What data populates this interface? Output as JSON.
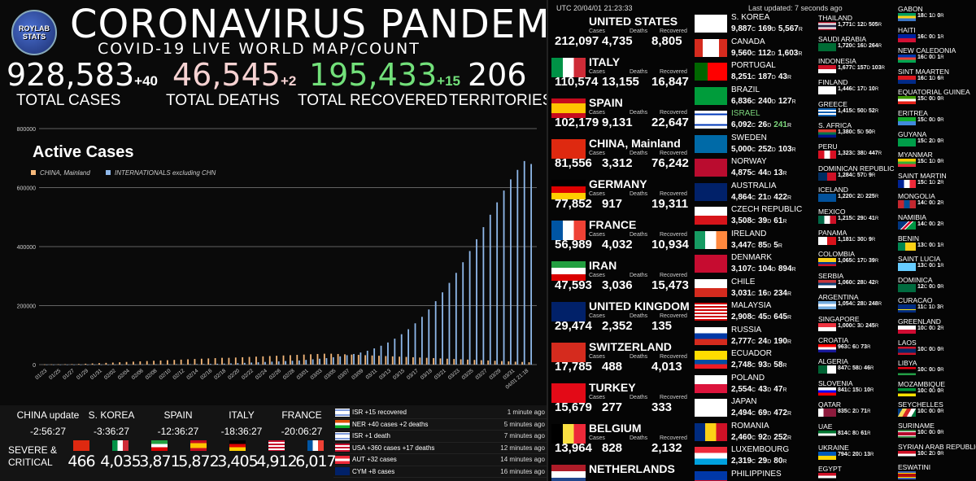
{
  "logo_text": "ROYLAB STATS",
  "title": "CORONAVIRUS PANDEMIC",
  "subtitle": "COVID-19 LIVE WORLD MAP/COUNT",
  "stats": [
    {
      "value": "928,583",
      "inc": "+40",
      "label": "TOTAL CASES",
      "color": "#ffffff"
    },
    {
      "value": "46,545",
      "inc": "+2",
      "label": "TOTAL DEATHS",
      "color": "#f6d2d2"
    },
    {
      "value": "195,433",
      "inc": "+15",
      "label": "TOTAL RECOVERED",
      "color": "#72e07a"
    },
    {
      "value": "206",
      "inc": "",
      "label": "TERRITORIES",
      "color": "#ffffff"
    }
  ],
  "chart_data": {
    "type": "bar",
    "title": "Active Cases",
    "legend": [
      "CHINA, Mainland",
      "INTERNATIONALS excluding CHN"
    ],
    "colors": [
      "#f5b87a",
      "#8fb8ea"
    ],
    "ylim": [
      0,
      800000
    ],
    "yticks": [
      "0",
      "200000",
      "400000",
      "600000",
      "800000"
    ],
    "xticks": [
      "01/23",
      "01/25",
      "01/27",
      "01/29",
      "01/31",
      "02/02",
      "02/04",
      "02/06",
      "02/08",
      "02/10",
      "02/12",
      "02/14",
      "02/16",
      "02/18",
      "02/20",
      "02/22",
      "02/24",
      "02/26",
      "02/28",
      "03/01",
      "03/03",
      "03/05",
      "03/07",
      "03/09",
      "03/11",
      "03/13",
      "03/15",
      "03/17",
      "03/19",
      "03/21",
      "03/23",
      "03/25",
      "03/27",
      "03/29",
      "03/31",
      "04/01 21:18"
    ],
    "series": [
      {
        "name": "CHINA, Mainland",
        "values": [
          600,
          800,
          1000,
          1200,
          1500,
          2000,
          3000,
          4000,
          5000,
          6000,
          7000,
          8000,
          9000,
          10000,
          11000,
          12000,
          13000,
          14000,
          15000,
          16000,
          17000,
          18000,
          19000,
          20000,
          21000,
          22000,
          23000,
          23000,
          24000,
          25000,
          26000,
          27000,
          28000,
          29000,
          30000,
          31000,
          32000,
          33000,
          34000,
          35000,
          36000,
          37000,
          37000,
          36000,
          35000,
          34000,
          33000,
          32000,
          31000,
          30000,
          29000,
          28000,
          27000,
          26000,
          25000,
          24000,
          23000,
          22000,
          21000,
          20000,
          19000,
          18000,
          17000,
          16000,
          15000,
          14000,
          13000,
          12000,
          11000,
          10000,
          9000,
          8000
        ]
      },
      {
        "name": "INTERNATIONALS excluding CHN",
        "values": [
          10,
          20,
          30,
          40,
          50,
          70,
          100,
          130,
          160,
          200,
          250,
          300,
          400,
          500,
          600,
          700,
          800,
          900,
          1000,
          1200,
          1400,
          1600,
          1800,
          2000,
          2500,
          3000,
          3500,
          4000,
          5000,
          6000,
          7000,
          8000,
          9000,
          10000,
          11000,
          12000,
          13000,
          14000,
          16000,
          18000,
          20000,
          22000,
          25000,
          28000,
          32000,
          36000,
          41000,
          47000,
          55000,
          64000,
          75000,
          88000,
          103000,
          120000,
          140000,
          162000,
          187000,
          215000,
          245000,
          277000,
          311000,
          347000,
          385000,
          425000,
          466000,
          508000,
          550000,
          590000,
          628000,
          660000,
          690000,
          680000
        ]
      }
    ]
  },
  "updates": [
    {
      "name": "CHINA update",
      "time": "-2:56:27"
    },
    {
      "name": "S. KOREA",
      "time": "-3:36:27"
    },
    {
      "name": "SPAIN",
      "time": "-12:36:27"
    },
    {
      "name": "ITALY",
      "time": "-18:36:27"
    },
    {
      "name": "FRANCE",
      "time": "-20:06:27"
    }
  ],
  "severe_label": "SEVERE & CRITICAL",
  "severe": [
    {
      "value": "466",
      "flag": "china"
    },
    {
      "value": "4,035",
      "flag": "italy"
    },
    {
      "value": "3,871",
      "flag": "iran"
    },
    {
      "value": "5,872",
      "flag": "spain"
    },
    {
      "value": "3,405",
      "flag": "germany"
    },
    {
      "value": "4,912",
      "flag": "usa"
    },
    {
      "value": "6,017",
      "flag": "france"
    }
  ],
  "news": [
    {
      "text": "ISR +15 recovered",
      "time": "1 minute ago",
      "flag": "israel"
    },
    {
      "text": "NER +40 cases +2 deaths",
      "time": "5 minutes ago",
      "flag": "niger"
    },
    {
      "text": "ISR +1 death",
      "time": "7 minutes ago",
      "flag": "israel"
    },
    {
      "text": "USA +360 cases +17 deaths",
      "time": "12 minutes ago",
      "flag": "usa"
    },
    {
      "text": "AUT +32 cases",
      "time": "14 minutes ago",
      "flag": "austria"
    },
    {
      "text": "CYM +8 cases",
      "time": "16 minutes ago",
      "flag": "cayman"
    }
  ],
  "header_utc": "UTC 20/04/01 21:23:33",
  "header_updated": "Last updated: 7 seconds ago",
  "col_labels": {
    "cases": "Cases",
    "deaths": "Deaths",
    "recovered": "Recovered"
  },
  "top_countries": [
    {
      "name": "UNITED STATES",
      "cases": "212,097",
      "deaths": "4,735",
      "recovered": "8,805",
      "flag": "usa"
    },
    {
      "name": "ITALY",
      "cases": "110,574",
      "deaths": "13,155",
      "recovered": "16,847",
      "flag": "italy"
    },
    {
      "name": "SPAIN",
      "cases": "102,179",
      "deaths": "9,131",
      "recovered": "22,647",
      "flag": "spain"
    },
    {
      "name": "CHINA, Mainland",
      "cases": "81,556",
      "deaths": "3,312",
      "recovered": "76,242",
      "flag": "china"
    },
    {
      "name": "GERMANY",
      "cases": "77,852",
      "deaths": "917",
      "recovered": "19,311",
      "flag": "germany"
    },
    {
      "name": "FRANCE",
      "cases": "56,989",
      "deaths": "4,032",
      "recovered": "10,934",
      "flag": "france"
    },
    {
      "name": "IRAN",
      "cases": "47,593",
      "deaths": "3,036",
      "recovered": "15,473",
      "flag": "iran"
    },
    {
      "name": "UNITED KINGDOM",
      "cases": "29,474",
      "deaths": "2,352",
      "recovered": "135",
      "flag": "uk"
    },
    {
      "name": "SWITZERLAND",
      "cases": "17,785",
      "deaths": "488",
      "recovered": "4,013",
      "flag": "switzerland"
    },
    {
      "name": "TURKEY",
      "cases": "15,679",
      "deaths": "277",
      "recovered": "333",
      "flag": "turkey"
    },
    {
      "name": "BELGIUM",
      "cases": "13,964",
      "deaths": "828",
      "recovered": "2,132",
      "flag": "belgium"
    },
    {
      "name": "NETHERLANDS",
      "cases": "",
      "deaths": "",
      "recovered": "",
      "flag": "netherlands"
    }
  ],
  "mid_countries": [
    {
      "name": "S. KOREA",
      "c": "9,887",
      "d": "169",
      "r": "5,567",
      "flag": "korea"
    },
    {
      "name": "CANADA",
      "c": "9,560",
      "d": "112",
      "r": "1,603",
      "flag": "canada"
    },
    {
      "name": "PORTUGAL",
      "c": "8,251",
      "d": "187",
      "r": "43",
      "flag": "portugal"
    },
    {
      "name": "BRAZIL",
      "c": "6,836",
      "d": "240",
      "r": "127",
      "flag": "brazil"
    },
    {
      "name": "ISRAEL",
      "c": "6,092",
      "d": "26",
      "r": "241",
      "flag": "israel",
      "hl": true
    },
    {
      "name": "SWEDEN",
      "c": "5,000",
      "d": "252",
      "r": "103",
      "flag": "sweden"
    },
    {
      "name": "NORWAY",
      "c": "4,875",
      "d": "44",
      "r": "13",
      "flag": "norway"
    },
    {
      "name": "AUSTRALIA",
      "c": "4,864",
      "d": "21",
      "r": "422",
      "flag": "australia"
    },
    {
      "name": "CZECH REPUBLIC",
      "c": "3,508",
      "d": "39",
      "r": "61",
      "flag": "czech"
    },
    {
      "name": "IRELAND",
      "c": "3,447",
      "d": "85",
      "r": "5",
      "flag": "ireland"
    },
    {
      "name": "DENMARK",
      "c": "3,107",
      "d": "104",
      "r": "894",
      "flag": "denmark"
    },
    {
      "name": "CHILE",
      "c": "3,031",
      "d": "16",
      "r": "234",
      "flag": "chile"
    },
    {
      "name": "MALAYSIA",
      "c": "2,908",
      "d": "45",
      "r": "645",
      "flag": "malaysia"
    },
    {
      "name": "RUSSIA",
      "c": "2,777",
      "d": "24",
      "r": "190",
      "flag": "russia"
    },
    {
      "name": "ECUADOR",
      "c": "2,748",
      "d": "93",
      "r": "58",
      "flag": "ecuador"
    },
    {
      "name": "POLAND",
      "c": "2,554",
      "d": "43",
      "r": "47",
      "flag": "poland"
    },
    {
      "name": "JAPAN",
      "c": "2,494",
      "d": "69",
      "r": "472",
      "flag": "japan"
    },
    {
      "name": "ROMANIA",
      "c": "2,460",
      "d": "92",
      "r": "252",
      "flag": "romania"
    },
    {
      "name": "LUXEMBOURG",
      "c": "2,319",
      "d": "29",
      "r": "80",
      "flag": "luxembourg"
    },
    {
      "name": "PHILIPPINES",
      "c": "",
      "d": "",
      "r": "",
      "flag": "philippines"
    }
  ],
  "small_col1": [
    {
      "name": "THAILAND",
      "c": "1,771",
      "d": "12",
      "r": "505",
      "flag": "thailand"
    },
    {
      "name": "SAUDI ARABIA",
      "c": "1,720",
      "d": "16",
      "r": "264",
      "flag": "saudi"
    },
    {
      "name": "INDONESIA",
      "c": "1,677",
      "d": "157",
      "r": "103",
      "flag": "indonesia"
    },
    {
      "name": "FINLAND",
      "c": "1,446",
      "d": "17",
      "r": "10",
      "flag": "finland"
    },
    {
      "name": "GREECE",
      "c": "1,415",
      "d": "50",
      "r": "52",
      "flag": "greece"
    },
    {
      "name": "S. AFRICA",
      "c": "1,380",
      "d": "5",
      "r": "50",
      "flag": "safrica"
    },
    {
      "name": "PERU",
      "c": "1,323",
      "d": "38",
      "r": "447",
      "flag": "peru"
    },
    {
      "name": "DOMINICAN REPUBLIC",
      "c": "1,284",
      "d": "57",
      "r": "9",
      "flag": "dominicanrep"
    },
    {
      "name": "ICELAND",
      "c": "1,220",
      "d": "2",
      "r": "225",
      "flag": "iceland"
    },
    {
      "name": "MEXICO",
      "c": "1,215",
      "d": "29",
      "r": "41",
      "flag": "mexico"
    },
    {
      "name": "PANAMA",
      "c": "1,181",
      "d": "30",
      "r": "9",
      "flag": "panama"
    },
    {
      "name": "COLOMBIA",
      "c": "1,065",
      "d": "17",
      "r": "39",
      "flag": "colombia"
    },
    {
      "name": "SERBIA",
      "c": "1,060",
      "d": "28",
      "r": "42",
      "flag": "serbia"
    },
    {
      "name": "ARGENTINA",
      "c": "1,054",
      "d": "28",
      "r": "248",
      "flag": "argentina"
    },
    {
      "name": "SINGAPORE",
      "c": "1,000",
      "d": "3",
      "r": "245",
      "flag": "singapore"
    },
    {
      "name": "CROATIA",
      "c": "963",
      "d": "6",
      "r": "73",
      "flag": "croatia"
    },
    {
      "name": "ALGERIA",
      "c": "847",
      "d": "58",
      "r": "46",
      "flag": "algeria"
    },
    {
      "name": "SLOVENIA",
      "c": "841",
      "d": "15",
      "r": "10",
      "flag": "slovenia"
    },
    {
      "name": "QATAR",
      "c": "835",
      "d": "2",
      "r": "71",
      "flag": "qatar"
    },
    {
      "name": "UAE",
      "c": "814",
      "d": "8",
      "r": "61",
      "flag": "uae"
    },
    {
      "name": "UKRAINE",
      "c": "794",
      "d": "20",
      "r": "13",
      "flag": "ukraine"
    },
    {
      "name": "EGYPT",
      "c": "",
      "d": "",
      "r": "",
      "flag": "egypt"
    }
  ],
  "small_col2": [
    {
      "name": "GABON",
      "c": "18",
      "d": "1",
      "r": "0",
      "flag": "gabon"
    },
    {
      "name": "HAITI",
      "c": "16",
      "d": "0",
      "r": "1",
      "flag": "haiti"
    },
    {
      "name": "NEW CALEDONIA",
      "c": "16",
      "d": "0",
      "r": "1",
      "flag": "newcaledonia"
    },
    {
      "name": "SINT MAARTEN",
      "c": "16",
      "d": "1",
      "r": "6",
      "flag": "sintmaarten"
    },
    {
      "name": "EQUATORIAL GUINEA",
      "c": "15",
      "d": "0",
      "r": "0",
      "flag": "eqguinea"
    },
    {
      "name": "ERITREA",
      "c": "15",
      "d": "0",
      "r": "0",
      "flag": "eritrea"
    },
    {
      "name": "GUYANA",
      "c": "15",
      "d": "2",
      "r": "0",
      "flag": "guyana"
    },
    {
      "name": "MYANMAR",
      "c": "15",
      "d": "1",
      "r": "0",
      "flag": "myanmar"
    },
    {
      "name": "SAINT MARTIN",
      "c": "15",
      "d": "1",
      "r": "2",
      "flag": "saintmartin"
    },
    {
      "name": "MONGOLIA",
      "c": "14",
      "d": "0",
      "r": "2",
      "flag": "mongolia"
    },
    {
      "name": "NAMIBIA",
      "c": "14",
      "d": "0",
      "r": "2",
      "flag": "namibia"
    },
    {
      "name": "BENIN",
      "c": "13",
      "d": "0",
      "r": "1",
      "flag": "benin"
    },
    {
      "name": "SAINT LUCIA",
      "c": "13",
      "d": "0",
      "r": "1",
      "flag": "saintlucia"
    },
    {
      "name": "DOMINICA",
      "c": "12",
      "d": "0",
      "r": "0",
      "flag": "dominica"
    },
    {
      "name": "CURACAO",
      "c": "11",
      "d": "1",
      "r": "3",
      "flag": "curacao"
    },
    {
      "name": "GREENLAND",
      "c": "10",
      "d": "0",
      "r": "2",
      "flag": "greenland"
    },
    {
      "name": "LAOS",
      "c": "10",
      "d": "0",
      "r": "0",
      "flag": "laos"
    },
    {
      "name": "LIBYA",
      "c": "10",
      "d": "0",
      "r": "0",
      "flag": "libya"
    },
    {
      "name": "MOZAMBIQUE",
      "c": "10",
      "d": "0",
      "r": "0",
      "flag": "mozambique"
    },
    {
      "name": "SEYCHELLES",
      "c": "10",
      "d": "0",
      "r": "0",
      "flag": "seychelles"
    },
    {
      "name": "SURINAME",
      "c": "10",
      "d": "0",
      "r": "0",
      "flag": "suriname"
    },
    {
      "name": "SYRIAN ARAB REPUBLIC",
      "c": "10",
      "d": "2",
      "r": "0",
      "flag": "syria"
    },
    {
      "name": "ESWATINI",
      "c": "",
      "d": "",
      "r": "",
      "flag": "eswatini"
    }
  ],
  "unit_labels": {
    "c": "C",
    "d": "D",
    "r": "R"
  }
}
